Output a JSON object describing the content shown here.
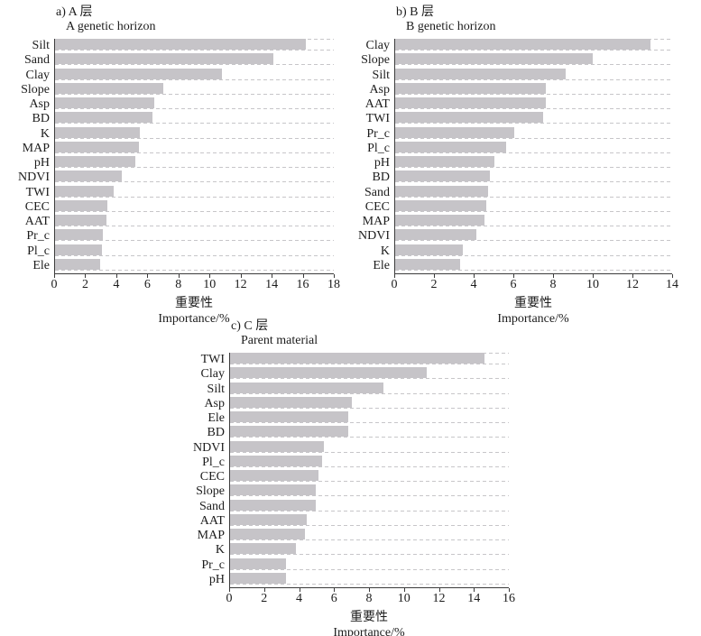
{
  "colors": {
    "bar": "#c6c4c8",
    "grid_dash": "#c7c6c9",
    "axis": "#3c3c3c",
    "text": "#1c1c1c"
  },
  "chart_data": [
    {
      "type": "bar",
      "orientation": "horizontal",
      "panel_label": "a) A 层",
      "subtitle": "A genetic horizon",
      "xlabel_line1": "重要性",
      "xlabel_line2": "Importance/%",
      "xlim": [
        0,
        18
      ],
      "xticks": [
        0,
        2,
        4,
        6,
        8,
        10,
        12,
        14,
        16,
        18
      ],
      "grid": "dashed horizontal gridline under each bar",
      "legend": "none",
      "categories": [
        "Silt",
        "Sand",
        "Clay",
        "Slope",
        "Asp",
        "BD",
        "K",
        "MAP",
        "pH",
        "NDVI",
        "TWI",
        "CEC",
        "AAT",
        "Pr_c",
        "Pl_c",
        "Ele"
      ],
      "values": [
        16.2,
        14.1,
        10.8,
        7.0,
        6.4,
        6.3,
        5.5,
        5.4,
        5.2,
        4.3,
        3.8,
        3.4,
        3.3,
        3.1,
        3.0,
        2.9
      ]
    },
    {
      "type": "bar",
      "orientation": "horizontal",
      "panel_label": "b) B 层",
      "subtitle": "B genetic horizon",
      "xlabel_line1": "重要性",
      "xlabel_line2": "Importance/%",
      "xlim": [
        0,
        14
      ],
      "xticks": [
        0,
        2,
        4,
        6,
        8,
        10,
        12,
        14
      ],
      "grid": "dashed horizontal gridline under each bar",
      "legend": "none",
      "categories": [
        "Clay",
        "Slope",
        "Silt",
        "Asp",
        "AAT",
        "TWI",
        "Pr_c",
        "Pl_c",
        "pH",
        "BD",
        "Sand",
        "CEC",
        "MAP",
        "NDVI",
        "K",
        "Ele"
      ],
      "values": [
        12.9,
        10.0,
        8.6,
        7.6,
        7.6,
        7.5,
        6.0,
        5.6,
        5.0,
        4.8,
        4.7,
        4.6,
        4.5,
        4.1,
        3.4,
        3.3
      ]
    },
    {
      "type": "bar",
      "orientation": "horizontal",
      "panel_label": "c) C 层",
      "subtitle": "Parent material",
      "xlabel_line1": "重要性",
      "xlabel_line2": "Importance/%",
      "xlim": [
        0,
        16
      ],
      "xticks": [
        0,
        2,
        4,
        6,
        8,
        10,
        12,
        14,
        16
      ],
      "grid": "dashed horizontal gridline under each bar",
      "legend": "none",
      "categories": [
        "TWI",
        "Clay",
        "Silt",
        "Asp",
        "Ele",
        "BD",
        "NDVI",
        "Pl_c",
        "CEC",
        "Slope",
        "Sand",
        "AAT",
        "MAP",
        "K",
        "Pr_c",
        "pH"
      ],
      "values": [
        14.6,
        11.3,
        8.8,
        7.0,
        6.8,
        6.8,
        5.4,
        5.3,
        5.1,
        4.9,
        4.9,
        4.4,
        4.3,
        3.8,
        3.2,
        3.2
      ]
    }
  ]
}
